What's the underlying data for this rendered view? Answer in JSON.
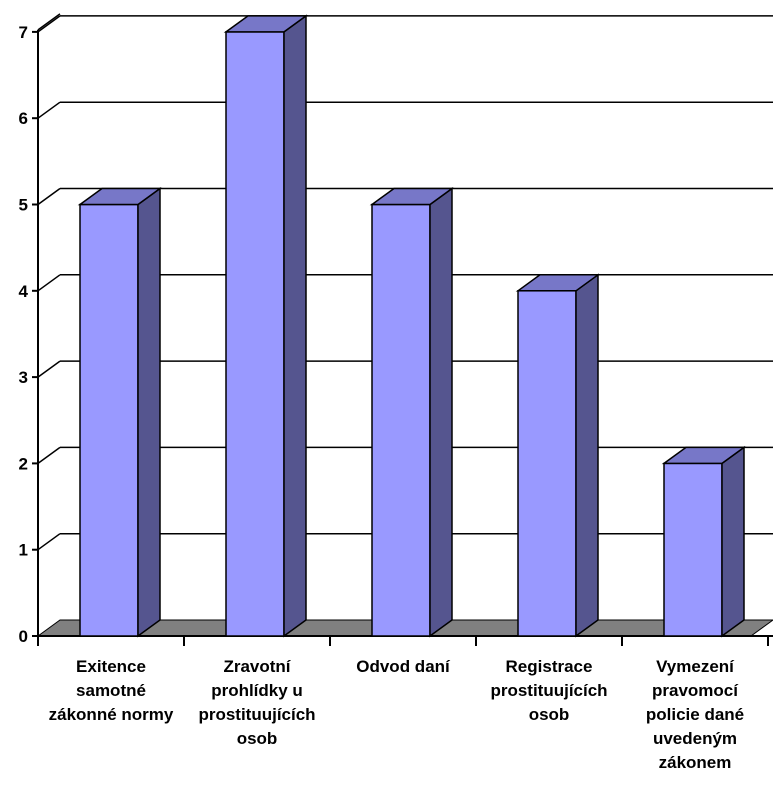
{
  "chart_data": {
    "type": "bar",
    "style": "3d-column",
    "title": "",
    "xlabel": "",
    "ylabel": "",
    "ylim": [
      0,
      7
    ],
    "yticks": [
      0,
      1,
      2,
      3,
      4,
      5,
      6,
      7
    ],
    "grid": true,
    "legend": "none",
    "categories": [
      [
        "Exitence",
        "samotné",
        "zákonné normy"
      ],
      [
        "Zravotní",
        "prohlídky u",
        "prostituujících",
        "osob"
      ],
      [
        "Odvod daní"
      ],
      [
        "Registrace",
        "prostituujících",
        "osob"
      ],
      [
        "Vymezení",
        "pravomocí",
        "policie dané",
        "uvedeným",
        "zákonem"
      ]
    ],
    "values": [
      5,
      7,
      5,
      4,
      2
    ],
    "colors": {
      "bar_front": "#9999ff",
      "bar_side": "#55558f",
      "bar_top": "#7777c8",
      "floor": "#808080",
      "gridline": "#000000"
    }
  }
}
